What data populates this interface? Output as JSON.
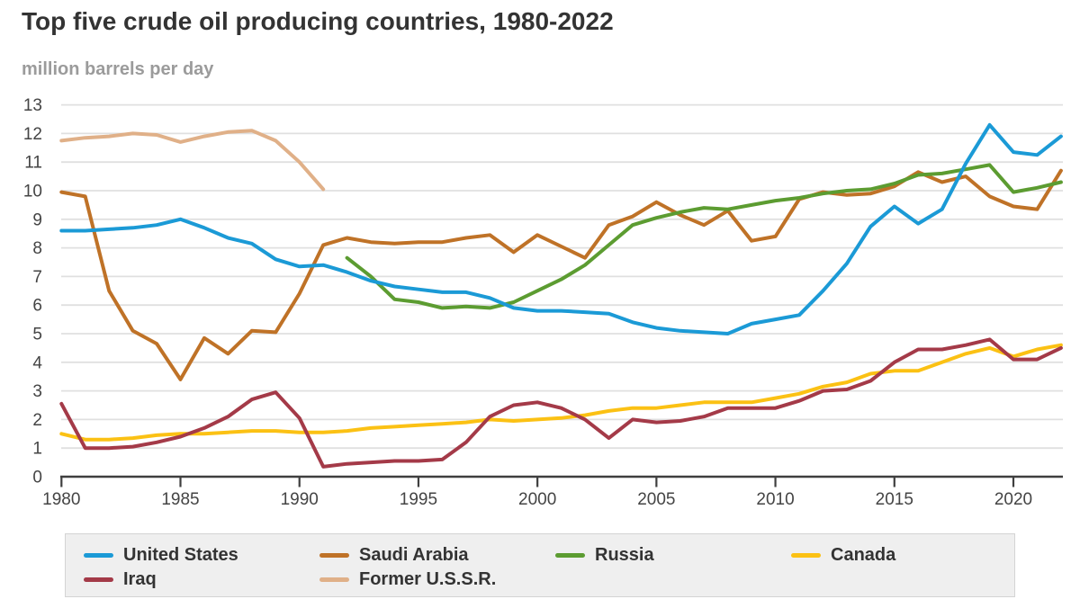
{
  "header": {
    "title": "Top five crude oil producing countries, 1980-2022",
    "subtitle": "million barrels per day"
  },
  "chart_data": {
    "type": "line",
    "title": "Top five crude oil producing countries, 1980-2022",
    "ylabel": "million barrels per day",
    "xlabel": "",
    "ylim": [
      0,
      13
    ],
    "grid": "horizontal",
    "legend_position": "bottom",
    "y_ticks": [
      0,
      1,
      2,
      3,
      4,
      5,
      6,
      7,
      8,
      9,
      10,
      11,
      12,
      13
    ],
    "x_ticks": [
      1980,
      1985,
      1990,
      1995,
      2000,
      2005,
      2010,
      2015,
      2020
    ],
    "years": [
      1980,
      1981,
      1982,
      1983,
      1984,
      1985,
      1986,
      1987,
      1988,
      1989,
      1990,
      1991,
      1992,
      1993,
      1994,
      1995,
      1996,
      1997,
      1998,
      1999,
      2000,
      2001,
      2002,
      2003,
      2004,
      2005,
      2006,
      2007,
      2008,
      2009,
      2010,
      2011,
      2012,
      2013,
      2014,
      2015,
      2016,
      2017,
      2018,
      2019,
      2020,
      2021,
      2022
    ],
    "series": [
      {
        "name": "United States",
        "color": "#1b9ad6",
        "values": [
          8.6,
          8.6,
          8.65,
          8.7,
          8.8,
          9.0,
          8.7,
          8.35,
          8.15,
          7.6,
          7.35,
          7.4,
          7.15,
          6.85,
          6.65,
          6.55,
          6.45,
          6.45,
          6.25,
          5.9,
          5.8,
          5.8,
          5.75,
          5.7,
          5.4,
          5.2,
          5.1,
          5.05,
          5.0,
          5.35,
          5.5,
          5.65,
          6.5,
          7.45,
          8.75,
          9.45,
          8.85,
          9.35,
          10.95,
          12.3,
          11.35,
          11.25,
          11.9
        ]
      },
      {
        "name": "Saudi Arabia",
        "color": "#bf7227",
        "values": [
          9.95,
          9.8,
          6.5,
          5.1,
          4.65,
          3.4,
          4.85,
          4.3,
          5.1,
          5.05,
          6.4,
          8.1,
          8.35,
          8.2,
          8.15,
          8.2,
          8.2,
          8.35,
          8.45,
          7.85,
          8.45,
          8.05,
          7.65,
          8.8,
          9.1,
          9.6,
          9.15,
          8.8,
          9.3,
          8.25,
          8.4,
          9.7,
          9.95,
          9.85,
          9.9,
          10.15,
          10.65,
          10.3,
          10.5,
          9.8,
          9.45,
          9.35,
          10.7
        ]
      },
      {
        "name": "Russia",
        "color": "#5c9c31",
        "values": [
          null,
          null,
          null,
          null,
          null,
          null,
          null,
          null,
          null,
          null,
          null,
          null,
          7.65,
          7.0,
          6.2,
          6.1,
          5.9,
          5.95,
          5.9,
          6.1,
          6.5,
          6.9,
          7.4,
          8.1,
          8.8,
          9.05,
          9.25,
          9.4,
          9.35,
          9.5,
          9.65,
          9.75,
          9.9,
          10.0,
          10.05,
          10.25,
          10.55,
          10.6,
          10.75,
          10.9,
          9.95,
          10.1,
          10.3
        ]
      },
      {
        "name": "Canada",
        "color": "#fbc114",
        "values": [
          1.5,
          1.3,
          1.3,
          1.35,
          1.45,
          1.5,
          1.5,
          1.55,
          1.6,
          1.6,
          1.55,
          1.55,
          1.6,
          1.7,
          1.75,
          1.8,
          1.85,
          1.9,
          2.0,
          1.95,
          2.0,
          2.05,
          2.15,
          2.3,
          2.4,
          2.4,
          2.5,
          2.6,
          2.6,
          2.6,
          2.75,
          2.9,
          3.15,
          3.3,
          3.6,
          3.7,
          3.7,
          4.0,
          4.3,
          4.5,
          4.2,
          4.45,
          4.6
        ]
      },
      {
        "name": "Iraq",
        "color": "#a43a48",
        "values": [
          2.55,
          1.0,
          1.0,
          1.05,
          1.2,
          1.4,
          1.7,
          2.1,
          2.7,
          2.95,
          2.05,
          0.35,
          0.45,
          0.5,
          0.55,
          0.55,
          0.6,
          1.2,
          2.1,
          2.5,
          2.6,
          2.4,
          2.0,
          1.35,
          2.0,
          1.9,
          1.95,
          2.1,
          2.4,
          2.4,
          2.4,
          2.65,
          3.0,
          3.05,
          3.35,
          4.0,
          4.45,
          4.45,
          4.6,
          4.8,
          4.1,
          4.1,
          4.5
        ]
      },
      {
        "name": "Former U.S.S.R.",
        "color": "#e0b088",
        "values": [
          11.75,
          11.85,
          11.9,
          12.0,
          11.95,
          11.7,
          11.9,
          12.05,
          12.1,
          11.75,
          11.0,
          10.05,
          null,
          null,
          null,
          null,
          null,
          null,
          null,
          null,
          null,
          null,
          null,
          null,
          null,
          null,
          null,
          null,
          null,
          null,
          null,
          null,
          null,
          null,
          null,
          null,
          null,
          null,
          null,
          null,
          null,
          null,
          null
        ]
      }
    ],
    "draw_order": [
      "Former U.S.S.R.",
      "Saudi Arabia",
      "Russia",
      "United States",
      "Canada",
      "Iraq"
    ],
    "legend_order": [
      "United States",
      "Saudi Arabia",
      "Russia",
      "Canada",
      "Iraq",
      "Former U.S.S.R."
    ]
  }
}
